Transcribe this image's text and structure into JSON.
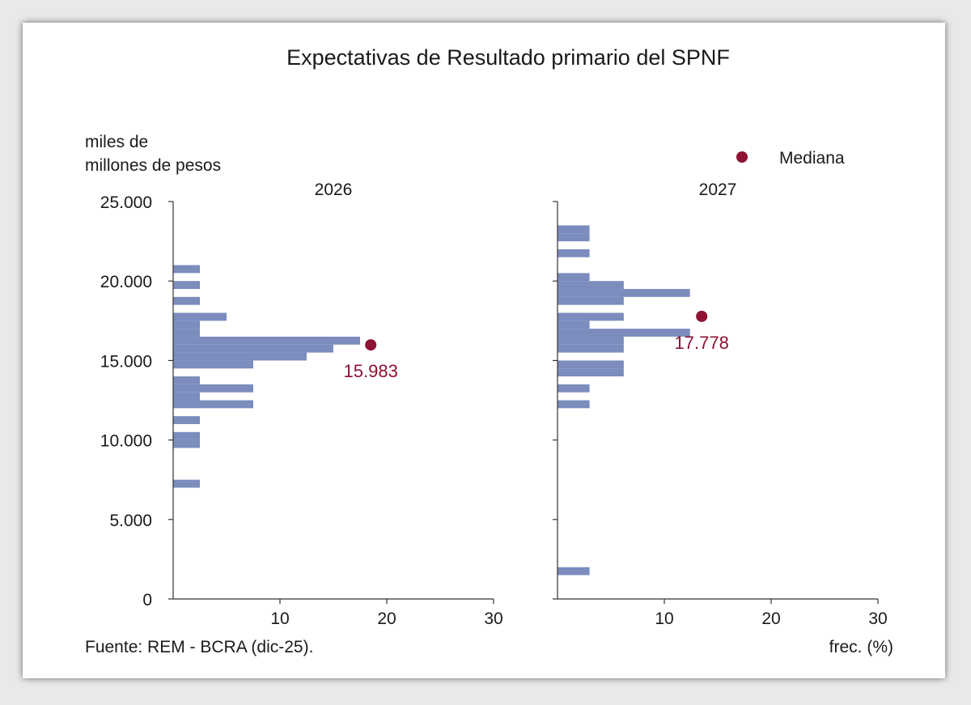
{
  "colors": {
    "bar": "#7b8cbd",
    "median": "#8f1133",
    "axis": "#333333",
    "text": "#1a1a1a"
  },
  "chart_data": {
    "type": "bar",
    "orientation": "horizontal-histogram",
    "title": "Expectativas de Resultado primario del SPNF",
    "ylabel": "miles de\nmillones de pesos",
    "xlabel": "frec. (%)",
    "ylim": [
      0,
      25000
    ],
    "xlim": [
      0,
      30
    ],
    "y_ticks": [
      "25.000",
      "20.000",
      "15.000",
      "10.000",
      "5.000",
      "0"
    ],
    "y_tick_values": [
      25000,
      20000,
      15000,
      10000,
      5000,
      0
    ],
    "x_ticks": [
      "10",
      "20",
      "30"
    ],
    "x_tick_values": [
      10,
      20,
      30
    ],
    "legend": {
      "label": "Mediana",
      "position": "top-right"
    },
    "source": "Fuente: REM - BCRA (dic-25).",
    "bin_width": 500,
    "panels": [
      {
        "name": "2026",
        "median": 15983,
        "median_label": "15.983",
        "median_frec": 18.5,
        "bins": [
          {
            "y": 20750,
            "frec": 2.5
          },
          {
            "y": 19750,
            "frec": 2.5
          },
          {
            "y": 18750,
            "frec": 2.5
          },
          {
            "y": 17750,
            "frec": 5.0
          },
          {
            "y": 17250,
            "frec": 2.5
          },
          {
            "y": 16750,
            "frec": 2.5
          },
          {
            "y": 16250,
            "frec": 17.5
          },
          {
            "y": 15750,
            "frec": 15.0
          },
          {
            "y": 15250,
            "frec": 12.5
          },
          {
            "y": 14750,
            "frec": 7.5
          },
          {
            "y": 13750,
            "frec": 2.5
          },
          {
            "y": 13250,
            "frec": 7.5
          },
          {
            "y": 12750,
            "frec": 2.5
          },
          {
            "y": 12250,
            "frec": 7.5
          },
          {
            "y": 11250,
            "frec": 2.5
          },
          {
            "y": 10250,
            "frec": 2.5
          },
          {
            "y": 9750,
            "frec": 2.5
          },
          {
            "y": 7250,
            "frec": 2.5
          }
        ]
      },
      {
        "name": "2027",
        "median": 17778,
        "median_label": "17.778",
        "median_frec": 13.5,
        "bins": [
          {
            "y": 23250,
            "frec": 3.0
          },
          {
            "y": 22750,
            "frec": 3.0
          },
          {
            "y": 21750,
            "frec": 3.0
          },
          {
            "y": 20250,
            "frec": 3.0
          },
          {
            "y": 19750,
            "frec": 6.2
          },
          {
            "y": 19250,
            "frec": 12.4
          },
          {
            "y": 18750,
            "frec": 6.2
          },
          {
            "y": 17750,
            "frec": 6.2
          },
          {
            "y": 17250,
            "frec": 3.0
          },
          {
            "y": 16750,
            "frec": 12.4
          },
          {
            "y": 16250,
            "frec": 6.2
          },
          {
            "y": 15750,
            "frec": 6.2
          },
          {
            "y": 14750,
            "frec": 6.2
          },
          {
            "y": 14250,
            "frec": 6.2
          },
          {
            "y": 13250,
            "frec": 3.0
          },
          {
            "y": 12250,
            "frec": 3.0
          },
          {
            "y": 1750,
            "frec": 3.0
          }
        ]
      }
    ]
  }
}
